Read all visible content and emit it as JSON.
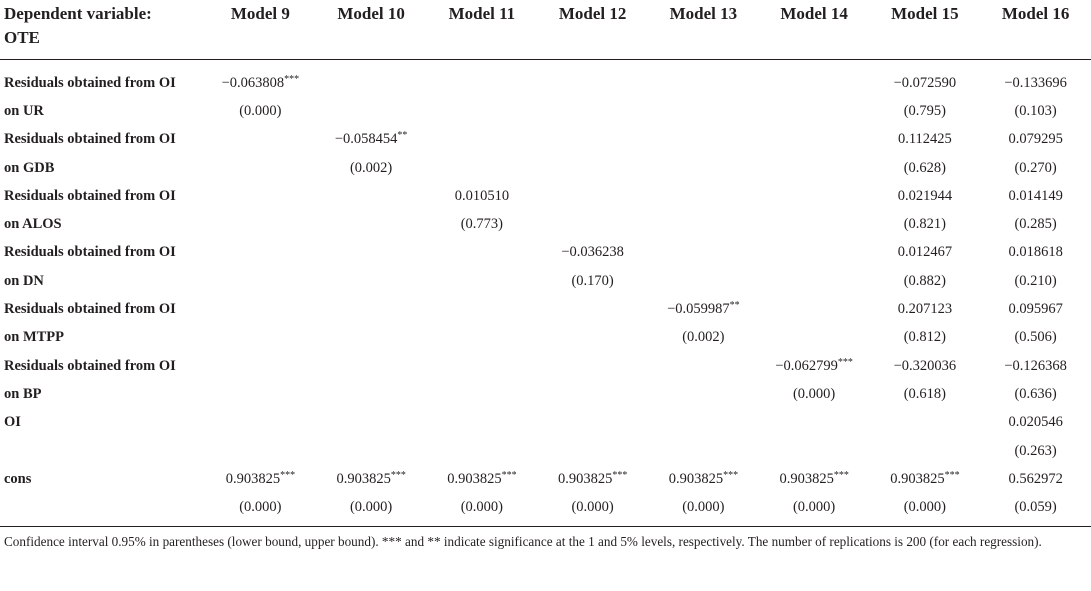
{
  "header": {
    "label_line1": "Dependent variable:",
    "label_line2": "OTE",
    "models": [
      "Model 9",
      "Model 10",
      "Model 11",
      "Model 12",
      "Model 13",
      "Model 14",
      "Model 15",
      "Model 16"
    ]
  },
  "rows": [
    {
      "label": "Residuals obtained from OI",
      "label2": "on UR",
      "coef": [
        "−0.063808",
        "",
        "",
        "",
        "",
        "",
        "−0.072590",
        "−0.133696"
      ],
      "stars": [
        "***",
        "",
        "",
        "",
        "",
        "",
        "",
        ""
      ],
      "ci": [
        "(0.000)",
        "",
        "",
        "",
        "",
        "",
        "(0.795)",
        "(0.103)"
      ]
    },
    {
      "label": "Residuals obtained from OI",
      "label2": "on GDB",
      "coef": [
        "",
        "−0.058454",
        "",
        "",
        "",
        "",
        "0.112425",
        "0.079295"
      ],
      "stars": [
        "",
        "**",
        "",
        "",
        "",
        "",
        "",
        ""
      ],
      "ci": [
        "",
        "(0.002)",
        "",
        "",
        "",
        "",
        "(0.628)",
        "(0.270)"
      ]
    },
    {
      "label": "Residuals obtained from OI",
      "label2": "on ALOS",
      "coef": [
        "",
        "",
        "0.010510",
        "",
        "",
        "",
        "0.021944",
        "0.014149"
      ],
      "stars": [
        "",
        "",
        "",
        "",
        "",
        "",
        "",
        ""
      ],
      "ci": [
        "",
        "",
        "(0.773)",
        "",
        "",
        "",
        "(0.821)",
        "(0.285)"
      ]
    },
    {
      "label": "Residuals obtained from OI",
      "label2": "on DN",
      "coef": [
        "",
        "",
        "",
        "−0.036238",
        "",
        "",
        "0.012467",
        "0.018618"
      ],
      "stars": [
        "",
        "",
        "",
        "",
        "",
        "",
        "",
        ""
      ],
      "ci": [
        "",
        "",
        "",
        "(0.170)",
        "",
        "",
        "(0.882)",
        "(0.210)"
      ]
    },
    {
      "label": "Residuals obtained from OI",
      "label2": "on MTPP",
      "coef": [
        "",
        "",
        "",
        "",
        "−0.059987",
        "",
        "0.207123",
        "0.095967"
      ],
      "stars": [
        "",
        "",
        "",
        "",
        "**",
        "",
        "",
        ""
      ],
      "ci": [
        "",
        "",
        "",
        "",
        "(0.002)",
        "",
        "(0.812)",
        "(0.506)"
      ]
    },
    {
      "label": "Residuals obtained from OI",
      "label2": "on BP",
      "coef": [
        "",
        "",
        "",
        "",
        "",
        "−0.062799",
        "−0.320036",
        "−0.126368"
      ],
      "stars": [
        "",
        "",
        "",
        "",
        "",
        "***",
        "",
        ""
      ],
      "ci": [
        "",
        "",
        "",
        "",
        "",
        "(0.000)",
        "(0.618)",
        "(0.636)"
      ]
    },
    {
      "label": "OI",
      "label2": "",
      "coef": [
        "",
        "",
        "",
        "",
        "",
        "",
        "",
        "0.020546"
      ],
      "stars": [
        "",
        "",
        "",
        "",
        "",
        "",
        "",
        ""
      ],
      "ci": [
        "",
        "",
        "",
        "",
        "",
        "",
        "",
        "(0.263)"
      ]
    },
    {
      "label": "cons",
      "label2": "",
      "coef": [
        "0.903825",
        "0.903825",
        "0.903825",
        "0.903825",
        "0.903825",
        "0.903825",
        "0.903825",
        "0.562972"
      ],
      "stars": [
        "***",
        "***",
        "***",
        "***",
        "***",
        "***",
        "***",
        ""
      ],
      "ci": [
        "(0.000)",
        "(0.000)",
        "(0.000)",
        "(0.000)",
        "(0.000)",
        "(0.000)",
        "(0.000)",
        "(0.059)"
      ]
    }
  ],
  "footnote": "Confidence interval 0.95% in parentheses (lower bound, upper bound). *** and ** indicate significance at the 1 and 5% levels, respectively. The number of replications is 200 (for each regression)."
}
